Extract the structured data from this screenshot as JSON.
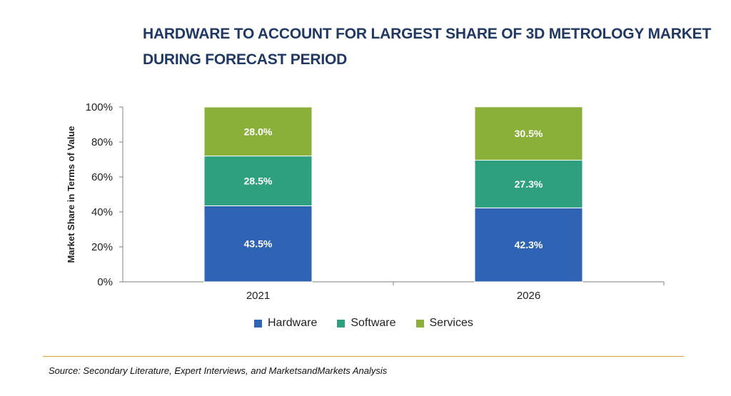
{
  "title_lines": [
    "HARDWARE TO ACCOUNT FOR LARGEST SHARE OF 3D METROLOGY MARKET",
    "DURING FORECAST PERIOD"
  ],
  "source": "Source: Secondary Literature, Expert Interviews, and MarketsandMarkets Analysis",
  "chart_data": {
    "type": "bar",
    "stacked": true,
    "categories": [
      "2021",
      "2026"
    ],
    "series": [
      {
        "name": "Hardware",
        "values": [
          43.5,
          42.3
        ],
        "labels": [
          "43.5%",
          "42.3%"
        ],
        "color": "#2e64b3"
      },
      {
        "name": "Software",
        "values": [
          28.5,
          27.3
        ],
        "labels": [
          "28.5%",
          "27.3%"
        ],
        "color": "#2e9f7f"
      },
      {
        "name": "Services",
        "values": [
          28.0,
          30.5
        ],
        "labels": [
          "28.0%",
          "30.5%"
        ],
        "color": "#8ab03a"
      }
    ],
    "ylabel": "Market Share in Terms of Value",
    "xlabel": "",
    "ylim": [
      0,
      100
    ],
    "yticks": [
      "0%",
      "20%",
      "40%",
      "60%",
      "80%",
      "100%"
    ],
    "grid": false,
    "legend_position": "bottom"
  }
}
